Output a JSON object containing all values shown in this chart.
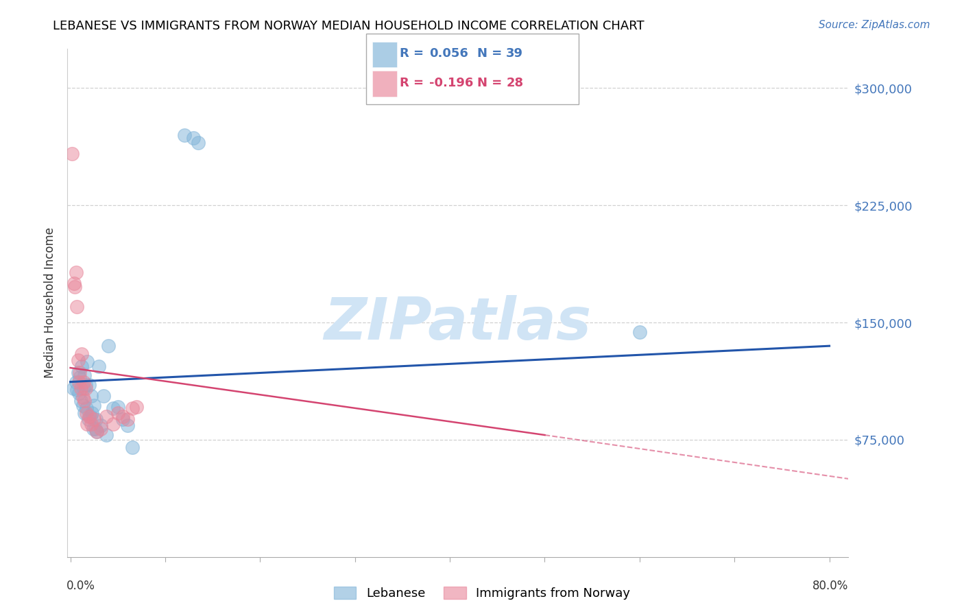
{
  "title": "LEBANESE VS IMMIGRANTS FROM NORWAY MEDIAN HOUSEHOLD INCOME CORRELATION CHART",
  "source": "Source: ZipAtlas.com",
  "ylabel": "Median Household Income",
  "yticks": [
    75000,
    150000,
    225000,
    300000
  ],
  "ytick_labels": [
    "$75,000",
    "$150,000",
    "$225,000",
    "$300,000"
  ],
  "ymin": 0,
  "ymax": 325000,
  "xmin": -0.003,
  "xmax": 0.82,
  "blue_color": "#7fb3d8",
  "pink_color": "#e8869a",
  "trend_blue_color": "#2255aa",
  "trend_pink_color": "#d44470",
  "watermark_text": "ZIPatlas",
  "watermark_color": "#d0e4f5",
  "lebanese_x": [
    0.003,
    0.006,
    0.007,
    0.008,
    0.009,
    0.01,
    0.011,
    0.012,
    0.013,
    0.014,
    0.015,
    0.015,
    0.016,
    0.017,
    0.018,
    0.019,
    0.02,
    0.021,
    0.022,
    0.023,
    0.024,
    0.025,
    0.026,
    0.027,
    0.028,
    0.03,
    0.032,
    0.035,
    0.038,
    0.04,
    0.045,
    0.05,
    0.055,
    0.06,
    0.065,
    0.12,
    0.13,
    0.135,
    0.6
  ],
  "lebanese_y": [
    108000,
    112000,
    107000,
    118000,
    105000,
    115000,
    100000,
    122000,
    97000,
    108000,
    116000,
    92000,
    110000,
    95000,
    125000,
    88000,
    110000,
    90000,
    103000,
    92000,
    82000,
    97000,
    82000,
    88000,
    80000,
    122000,
    84000,
    103000,
    78000,
    135000,
    95000,
    96000,
    88000,
    84000,
    70000,
    270000,
    268000,
    265000,
    144000
  ],
  "norway_x": [
    0.002,
    0.004,
    0.005,
    0.006,
    0.007,
    0.008,
    0.009,
    0.01,
    0.011,
    0.012,
    0.013,
    0.014,
    0.015,
    0.016,
    0.017,
    0.018,
    0.02,
    0.022,
    0.025,
    0.028,
    0.032,
    0.038,
    0.045,
    0.05,
    0.055,
    0.06,
    0.065,
    0.07
  ],
  "norway_y": [
    258000,
    175000,
    173000,
    182000,
    160000,
    126000,
    112000,
    118000,
    108000,
    130000,
    102000,
    112000,
    100000,
    108000,
    92000,
    85000,
    90000,
    85000,
    88000,
    80000,
    82000,
    90000,
    85000,
    92000,
    90000,
    88000,
    95000,
    96000
  ],
  "trend_blue_x0": 0.0,
  "trend_blue_x1": 0.8,
  "trend_blue_y0": 112000,
  "trend_blue_y1": 135000,
  "trend_pink_solid_x0": 0.0,
  "trend_pink_solid_x1": 0.5,
  "trend_pink_solid_y0": 121000,
  "trend_pink_solid_y1": 78000,
  "trend_pink_dash_x0": 0.5,
  "trend_pink_dash_x1": 0.82,
  "trend_pink_dash_y0": 78000,
  "trend_pink_dash_y1": 50000
}
